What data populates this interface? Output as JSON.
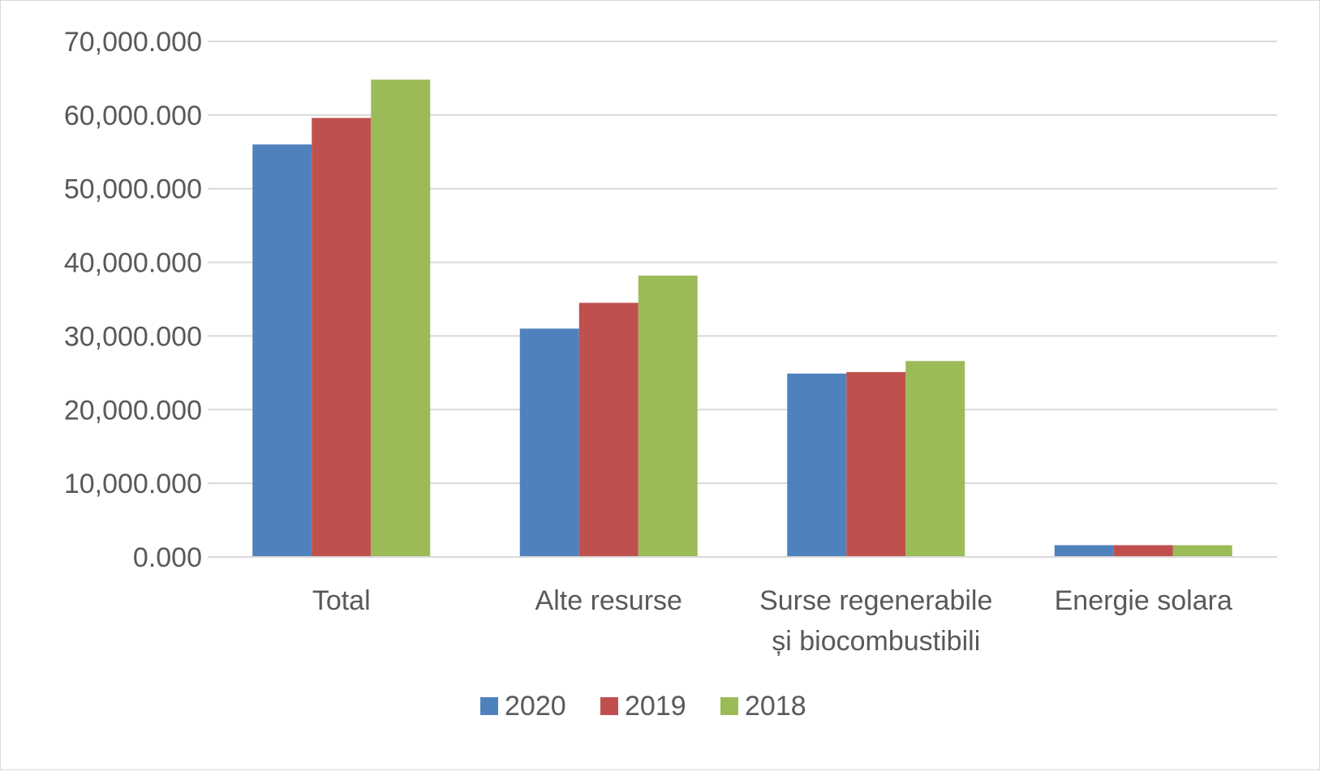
{
  "chart_data": {
    "type": "bar",
    "categories": [
      [
        "Total"
      ],
      [
        "Alte resurse"
      ],
      [
        "Surse regenerabile",
        "și biocombustibili"
      ],
      [
        "Energie solara"
      ]
    ],
    "series": [
      {
        "name": "2020",
        "color": "#4f81bd",
        "values": [
          56000000,
          31000000,
          24900000,
          1600000
        ]
      },
      {
        "name": "2019",
        "color": "#c0504d",
        "values": [
          59600000,
          34500000,
          25100000,
          1600000
        ]
      },
      {
        "name": "2018",
        "color": "#9bbb59",
        "values": [
          64800000,
          38200000,
          26600000,
          1600000
        ]
      }
    ],
    "ylim": [
      0,
      70000000
    ],
    "ytick_values": [
      0,
      10000000,
      20000000,
      30000000,
      40000000,
      50000000,
      60000000,
      70000000
    ],
    "ytick_labels": [
      "0.000",
      "10,000.000",
      "20,000.000",
      "30,000.000",
      "40,000.000",
      "50,000.000",
      "60,000.000",
      "70,000.000"
    ],
    "grid": true,
    "gridline_color": "#d9d9d9",
    "legend_position": "bottom",
    "title": "",
    "xlabel": "",
    "ylabel": ""
  }
}
